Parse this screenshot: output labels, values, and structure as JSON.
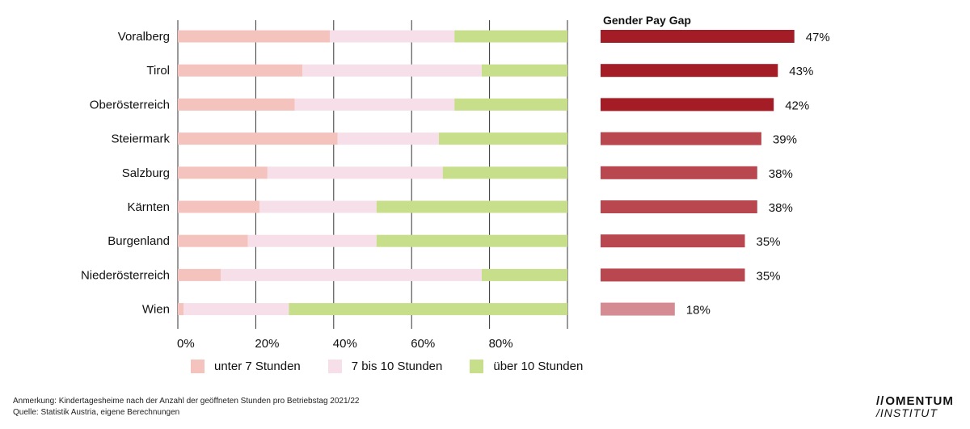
{
  "chart_data": [
    {
      "type": "bar",
      "orientation": "horizontal",
      "stacked": true,
      "categories": [
        "Voralberg",
        "Tirol",
        "Oberösterreich",
        "Steiermark",
        "Salzburg",
        "Kärnten",
        "Burgenland",
        "Niederösterreich",
        "Wien"
      ],
      "series": [
        {
          "name": "unter 7 Stunden",
          "color": "#f4c3bd",
          "values": [
            39,
            32,
            30,
            41,
            23,
            21,
            18,
            11,
            1.5
          ]
        },
        {
          "name": "7 bis 10 Stunden",
          "color": "#f6dfe8",
          "values": [
            32,
            46,
            41,
            26,
            45,
            30,
            33,
            67,
            27
          ]
        },
        {
          "name": "über 10 Stunden",
          "color": "#c7de8b",
          "values": [
            29,
            22,
            29,
            33,
            32,
            49,
            49,
            22,
            71.5
          ]
        }
      ],
      "xlim": [
        0,
        100
      ],
      "xticks": [
        0,
        20,
        40,
        60,
        80,
        100
      ],
      "xticklabels": [
        "0%",
        "20%",
        "40%",
        "60%",
        "80%",
        ""
      ],
      "grid": true,
      "legend": "bottom"
    },
    {
      "type": "bar",
      "orientation": "horizontal",
      "title": "Gender Pay Gap",
      "categories": [
        "Voralberg",
        "Tirol",
        "Oberösterreich",
        "Steiermark",
        "Salzburg",
        "Kärnten",
        "Burgenland",
        "Niederösterreich",
        "Wien"
      ],
      "values": [
        47,
        43,
        42,
        39,
        38,
        38,
        35,
        35,
        18
      ],
      "labels": [
        "47%",
        "43%",
        "42%",
        "39%",
        "38%",
        "38%",
        "35%",
        "35%",
        "18%"
      ],
      "colors": [
        "#a41c25",
        "#a41c25",
        "#a41c25",
        "#b9474f",
        "#b9474f",
        "#b9474f",
        "#b9474f",
        "#b9474f",
        "#d48b92"
      ]
    }
  ],
  "footer": {
    "note": "Anmerkung: Kindertagesheime nach der Anzahl der geöffneten Stunden pro Betriebstag 2021/22",
    "source": "Quelle: Statistik Austria, eigene Berechnungen"
  },
  "logo": {
    "mark": "//",
    "main": "OMENTUM",
    "sub": "/INSTITUT"
  }
}
